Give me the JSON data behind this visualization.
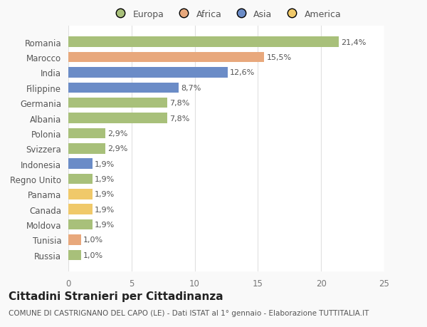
{
  "title": "Cittadini Stranieri per Cittadinanza",
  "subtitle": "COMUNE DI CASTRIGNANO DEL CAPO (LE) - Dati ISTAT al 1° gennaio - Elaborazione TUTTITALIA.IT",
  "legend_labels": [
    "Europa",
    "Africa",
    "Asia",
    "America"
  ],
  "legend_colors": [
    "#a8c07a",
    "#e8a87c",
    "#6b8cc7",
    "#f0c96a"
  ],
  "countries": [
    "Romania",
    "Marocco",
    "India",
    "Filippine",
    "Germania",
    "Albania",
    "Polonia",
    "Svizzera",
    "Indonesia",
    "Regno Unito",
    "Panama",
    "Canada",
    "Moldova",
    "Tunisia",
    "Russia"
  ],
  "values": [
    21.4,
    15.5,
    12.6,
    8.7,
    7.8,
    7.8,
    2.9,
    2.9,
    1.9,
    1.9,
    1.9,
    1.9,
    1.9,
    1.0,
    1.0
  ],
  "labels": [
    "21,4%",
    "15,5%",
    "12,6%",
    "8,7%",
    "7,8%",
    "7,8%",
    "2,9%",
    "2,9%",
    "1,9%",
    "1,9%",
    "1,9%",
    "1,9%",
    "1,9%",
    "1,0%",
    "1,0%"
  ],
  "colors": [
    "#a8c07a",
    "#e8a87c",
    "#6b8cc7",
    "#6b8cc7",
    "#a8c07a",
    "#a8c07a",
    "#a8c07a",
    "#a8c07a",
    "#6b8cc7",
    "#a8c07a",
    "#f0c96a",
    "#f0c96a",
    "#a8c07a",
    "#e8a87c",
    "#a8c07a"
  ],
  "xlim": [
    0,
    25
  ],
  "xticks": [
    0,
    5,
    10,
    15,
    20,
    25
  ],
  "background_color": "#f9f9f9",
  "bar_background": "#ffffff",
  "grid_color": "#e0e0e0",
  "bar_height": 0.68,
  "label_fontsize": 8.0,
  "ytick_fontsize": 8.5,
  "xtick_fontsize": 8.5,
  "title_fontsize": 11,
  "subtitle_fontsize": 7.5,
  "legend_fontsize": 9
}
